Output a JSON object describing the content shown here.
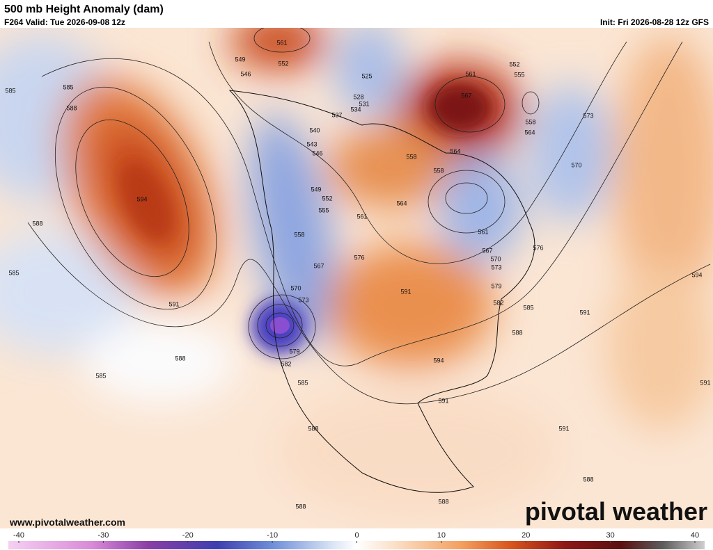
{
  "header": {
    "title": "500 mb Height Anomaly (dam)",
    "valid": "F264 Valid: Tue 2026-09-08 12z",
    "init": "Init: Fri 2026-08-28 12z GFS"
  },
  "footer": {
    "website": "www.pivotalweather.com",
    "logo": "pivotal weather"
  },
  "colorbar": {
    "range": [
      -40,
      40
    ],
    "ticks": [
      -40,
      -30,
      -20,
      -10,
      0,
      10,
      20,
      30,
      40
    ]
  },
  "contour_labels": [
    561,
    552,
    549,
    546,
    525,
    528,
    531,
    534,
    537,
    540,
    543,
    546,
    549,
    552,
    555,
    558,
    561,
    564,
    567,
    570,
    573,
    576,
    579,
    582,
    585,
    588,
    591,
    594,
    591,
    588,
    588,
    588,
    591,
    591,
    588,
    585,
    591,
    594,
    576,
    570,
    573,
    558,
    564,
    555,
    552,
    561,
    567,
    564,
    558,
    558,
    561,
    567,
    570,
    573,
    579,
    582,
    585,
    585,
    588,
    594,
    588,
    585,
    591,
    588,
    585
  ]
}
